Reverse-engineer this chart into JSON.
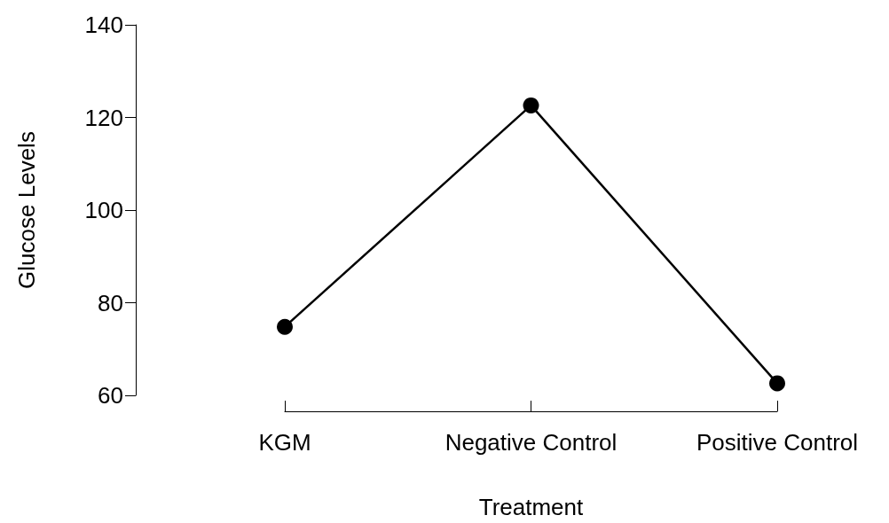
{
  "chart_data": {
    "type": "line",
    "xlabel": "Treatment",
    "ylabel": "Glucose Levels",
    "categories": [
      "KGM",
      "Negative Control",
      "Positive Control"
    ],
    "series": [
      {
        "color": "#000000",
        "values": [
          74.8,
          122.6,
          62.6
        ]
      }
    ],
    "ylim": [
      60,
      140
    ],
    "yticks": [
      60,
      80,
      100,
      120,
      140
    ],
    "grid": false,
    "marker": "circle",
    "line_style": "solid"
  }
}
